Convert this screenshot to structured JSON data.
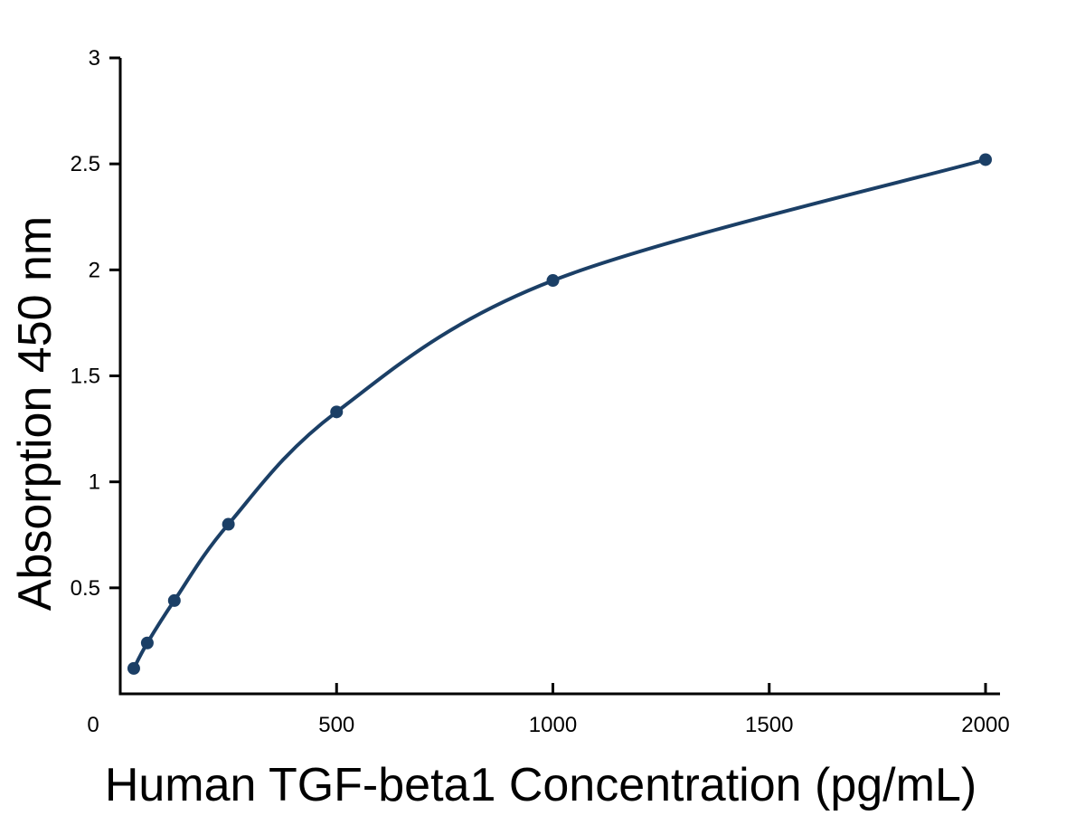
{
  "chart_data": {
    "type": "line",
    "title": "",
    "xlabel": "Human TGF-beta1 Concentration (pg/mL)",
    "ylabel": "Absorption 450 nm",
    "xlim": [
      0,
      2000
    ],
    "ylim": [
      0,
      3
    ],
    "x_ticks": [
      0,
      500,
      1000,
      1500,
      2000
    ],
    "x_tick_labels": [
      "0",
      "500",
      "1000",
      "1500",
      "2000"
    ],
    "y_ticks": [
      0.5,
      1,
      1.5,
      2,
      2.5,
      3
    ],
    "y_tick_labels": [
      "0.5",
      "1",
      "1.5",
      "2",
      "2.5",
      "3"
    ],
    "grid": false,
    "legend": "none",
    "line_color": "#1b3f66",
    "series": [
      {
        "x": [
          31.25,
          62.5,
          125,
          250,
          500,
          1000,
          2000
        ],
        "y": [
          0.12,
          0.24,
          0.44,
          0.8,
          1.33,
          1.95,
          2.52
        ]
      }
    ]
  }
}
